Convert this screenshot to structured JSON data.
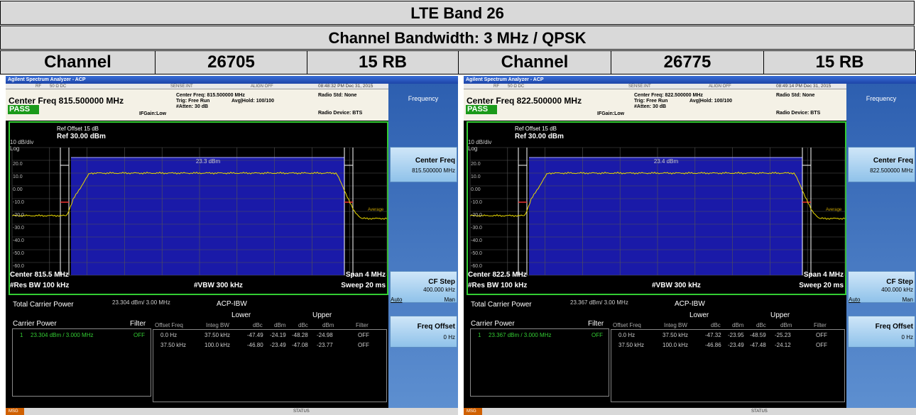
{
  "header": {
    "title": "LTE Band 26",
    "subtitle": "Channel Bandwidth: 3 MHz / QPSK",
    "cells": [
      "Channel",
      "26705",
      "15 RB",
      "Channel",
      "26775",
      "15 RB"
    ]
  },
  "panels": [
    {
      "app_title": "Agilent Spectrum Analyzer - ACP",
      "rf": "RF",
      "impedance": "50 Ω  DC",
      "sense": "SENSE:INT",
      "align": "ALIGN OFF",
      "time": "08:48:32 PM Dec 31, 2015",
      "center_freq_big": "Center Freq 815.500000 MHz",
      "pass": "PASS",
      "ifgain": "IFGain:Low",
      "meta_center": "Center Freq: 815.500000 MHz",
      "trig": "Trig: Free Run",
      "atten": "#Atten: 30 dB",
      "avg_hold": "Avg|Hold: 100/100",
      "radio_std": "Radio Std: None",
      "radio_device": "Radio Device: BTS",
      "menu_title": "Frequency",
      "ref_offset": "Ref Offset 15 dB",
      "ref_level": "Ref 30.00 dBm",
      "scale": "10 dB/div",
      "log": "Log",
      "y_labels": [
        "20.0",
        "10.0",
        "0.00",
        "-10.0",
        "-20.0",
        "-30.0",
        "-40.0",
        "-50.0",
        "-60.0"
      ],
      "carrier_label": "23.3 dBm",
      "average": "Average",
      "center": "Center  815.5 MHz",
      "res_bw": "#Res BW  100 kHz",
      "vbw": "#VBW  300 kHz",
      "span": "Span 4 MHz",
      "sweep": "Sweep  20 ms",
      "key_center_freq": "Center Freq",
      "key_center_freq_value": "815.500000 MHz",
      "key_cf_step": "CF Step",
      "key_cf_step_value": "400.000 kHz",
      "key_auto": "Auto",
      "key_man": "Man",
      "key_freq_offset": "Freq Offset",
      "key_freq_offset_value": "0 Hz",
      "total_power_label": "Total Carrier Power",
      "total_power_value": "23.304 dBm/ 3.00 MHz",
      "acp_ibw": "ACP-IBW",
      "carrier_power_label": "Carrier Power",
      "filter_label": "Filter",
      "carrier_index": "1",
      "carrier_value": "23.304 dBm /  3.000 MHz",
      "carrier_filter": "OFF",
      "lower": "Lower",
      "upper": "Upper",
      "acp_headers": [
        "Offset Freq",
        "Integ BW",
        "dBc",
        "dBm",
        "dBc",
        "dBm",
        "Filter"
      ],
      "acp_rows": [
        [
          "0.0 Hz",
          "37.50 kHz",
          "-47.49",
          "-24.19",
          "-48.28",
          "-24.98",
          "OFF"
        ],
        [
          "37.50 kHz",
          "100.0 kHz",
          "-46.80",
          "-23.49",
          "-47.08",
          "-23.77",
          "OFF"
        ]
      ],
      "msg": "MSG",
      "status": "STATUS"
    },
    {
      "app_title": "Agilent Spectrum Analyzer - ACP",
      "rf": "RF",
      "impedance": "50 Ω  DC",
      "sense": "SENSE:INT",
      "align": "ALIGN OFF",
      "time": "08:49:14 PM Dec 31, 2015",
      "center_freq_big": "Center Freq 822.500000 MHz",
      "pass": "PASS",
      "ifgain": "IFGain:Low",
      "meta_center": "Center Freq: 822.500000 MHz",
      "trig": "Trig: Free Run",
      "atten": "#Atten: 30 dB",
      "avg_hold": "Avg|Hold: 100/100",
      "radio_std": "Radio Std: None",
      "radio_device": "Radio Device: BTS",
      "menu_title": "Frequency",
      "ref_offset": "Ref Offset 15 dB",
      "ref_level": "Ref 30.00 dBm",
      "scale": "10 dB/div",
      "log": "Log",
      "y_labels": [
        "20.0",
        "10.0",
        "0.00",
        "-10.0",
        "-20.0",
        "-30.0",
        "-40.0",
        "-50.0",
        "-60.0"
      ],
      "carrier_label": "23.4 dBm",
      "average": "Average",
      "center": "Center  822.5 MHz",
      "res_bw": "#Res BW  100 kHz",
      "vbw": "#VBW  300 kHz",
      "span": "Span 4 MHz",
      "sweep": "Sweep  20 ms",
      "key_center_freq": "Center Freq",
      "key_center_freq_value": "822.500000 MHz",
      "key_cf_step": "CF Step",
      "key_cf_step_value": "400.000 kHz",
      "key_auto": "Auto",
      "key_man": "Man",
      "key_freq_offset": "Freq Offset",
      "key_freq_offset_value": "0 Hz",
      "total_power_label": "Total Carrier Power",
      "total_power_value": "23.367 dBm/ 3.00 MHz",
      "acp_ibw": "ACP-IBW",
      "carrier_power_label": "Carrier Power",
      "filter_label": "Filter",
      "carrier_index": "1",
      "carrier_value": "23.367 dBm /  3.000 MHz",
      "carrier_filter": "OFF",
      "lower": "Lower",
      "upper": "Upper",
      "acp_headers": [
        "Offset Freq",
        "Integ BW",
        "dBc",
        "dBm",
        "dBc",
        "dBm",
        "Filter"
      ],
      "acp_rows": [
        [
          "0.0 Hz",
          "37.50 kHz",
          "-47.32",
          "-23.95",
          "-48.59",
          "-25.23",
          "OFF"
        ],
        [
          "37.50 kHz",
          "100.0 kHz",
          "-46.86",
          "-23.49",
          "-47.48",
          "-24.12",
          "OFF"
        ]
      ],
      "msg": "MSG",
      "status": "STATUS"
    }
  ]
}
